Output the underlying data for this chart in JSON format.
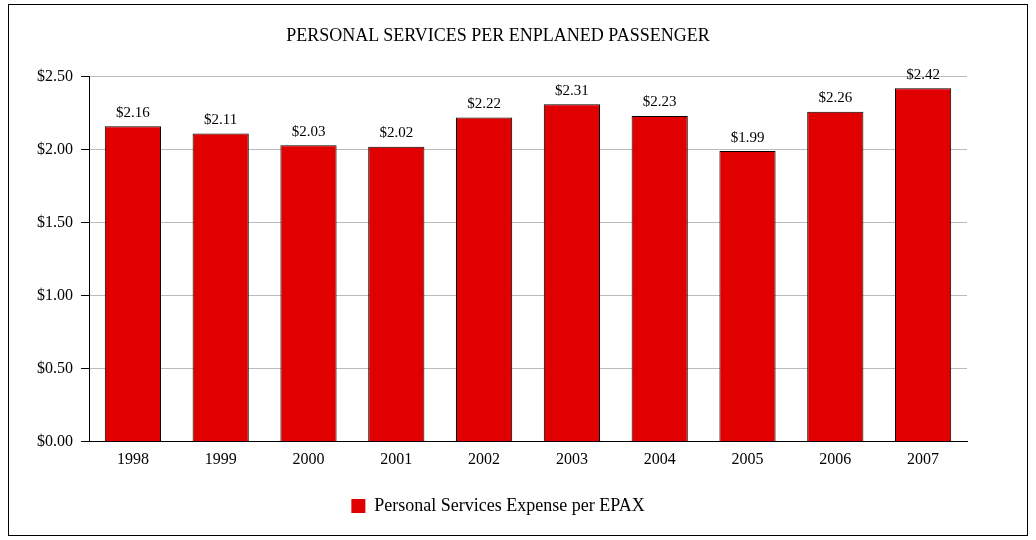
{
  "chart_data": {
    "type": "bar",
    "title": "PERSONAL SERVICES PER ENPLANED PASSENGER",
    "categories": [
      "1998",
      "1999",
      "2000",
      "2001",
      "2002",
      "2003",
      "2004",
      "2005",
      "2006",
      "2007"
    ],
    "series": [
      {
        "name": "Personal Services Expense per EPAX",
        "color": "#e00000",
        "values": [
          2.16,
          2.11,
          2.03,
          2.02,
          2.22,
          2.31,
          2.23,
          1.99,
          2.26,
          2.42
        ],
        "value_labels": [
          "$2.16",
          "$2.11",
          "$2.03",
          "$2.02",
          "$2.22",
          "$2.31",
          "$2.23",
          "$1.99",
          "$2.26",
          "$2.42"
        ]
      }
    ],
    "ylim": [
      0,
      2.5
    ],
    "yticks": [
      {
        "value": 0,
        "label": "$0.00"
      },
      {
        "value": 0.5,
        "label": "$0.50"
      },
      {
        "value": 1,
        "label": "$1.00"
      },
      {
        "value": 1.5,
        "label": "$1.50"
      },
      {
        "value": 2,
        "label": "$2.00"
      },
      {
        "value": 2.5,
        "label": "$2.50"
      }
    ],
    "grid": "y",
    "legend": "bottom"
  }
}
